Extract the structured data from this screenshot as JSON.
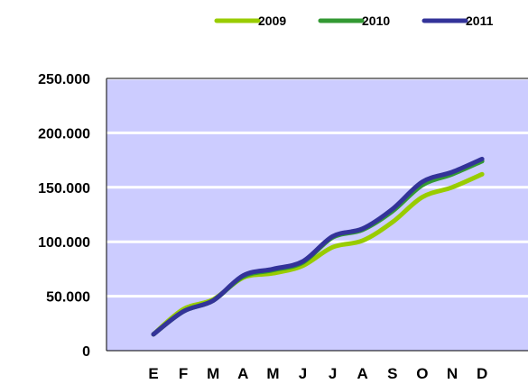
{
  "chart_data": {
    "type": "line",
    "categories": [
      "E",
      "F",
      "M",
      "A",
      "M",
      "J",
      "J",
      "A",
      "S",
      "O",
      "N",
      "D"
    ],
    "series": [
      {
        "name": "2009",
        "color": "#99cc00",
        "values": [
          15000,
          38000,
          47000,
          67000,
          71000,
          78000,
          95000,
          101000,
          118000,
          141000,
          150000,
          162000
        ]
      },
      {
        "name": "2010",
        "color": "#339933",
        "values": [
          15000,
          36000,
          46000,
          68000,
          74000,
          81000,
          104000,
          111000,
          128000,
          152000,
          162000,
          174000
        ]
      },
      {
        "name": "2011",
        "color": "#333399",
        "values": [
          15000,
          36000,
          46000,
          69000,
          75000,
          82000,
          105000,
          112000,
          130000,
          155000,
          164000,
          176000
        ]
      }
    ],
    "y_ticks": [
      "0",
      "50.000",
      "100.000",
      "150.000",
      "200.000",
      "250.000"
    ],
    "ylim": [
      0,
      250000
    ],
    "grid": true,
    "plot_background": "#ccccff",
    "gridline_color": "#ffffff",
    "legend_position": "top-right"
  }
}
